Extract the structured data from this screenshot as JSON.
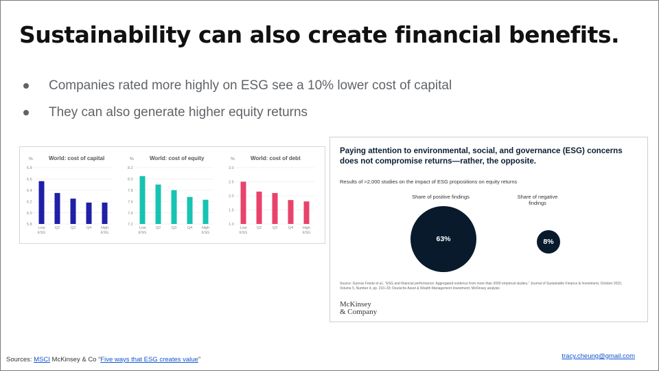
{
  "title": "Sustainability can also create financial benefits.",
  "bullets": [
    "Companies rated more highly on ESG see a 10% lower cost of capital",
    "They can also generate higher equity returns"
  ],
  "colors": {
    "capital": "#1f1fa8",
    "equity": "#17c3b2",
    "debt": "#e8436a",
    "dark_circle": "#081a2c",
    "link": "#1155cc"
  },
  "chart_data": [
    {
      "type": "bar",
      "title": "World: cost of capital",
      "ylabel": "%",
      "categories": [
        "Low ESG",
        "Q2",
        "Q3",
        "Q4",
        "High ESG"
      ],
      "values": [
        6.56,
        6.35,
        6.25,
        6.18,
        6.18
      ],
      "ylim": [
        5.8,
        6.8
      ],
      "yticks": [
        "5.8",
        "6.0",
        "6.2",
        "6.4",
        "6.6",
        "6.8"
      ]
    },
    {
      "type": "bar",
      "title": "World: cost of equity",
      "ylabel": "%",
      "categories": [
        "Low ESG",
        "Q2",
        "Q3",
        "Q4",
        "High ESG"
      ],
      "values": [
        8.05,
        7.9,
        7.8,
        7.68,
        7.63
      ],
      "ylim": [
        7.2,
        8.2
      ],
      "yticks": [
        "7.2",
        "7.4",
        "7.6",
        "7.8",
        "8.0",
        "8.2"
      ]
    },
    {
      "type": "bar",
      "title": "World: cost of debt",
      "ylabel": "%",
      "categories": [
        "Low ESG",
        "Q2",
        "Q3",
        "Q4",
        "High ESG"
      ],
      "values": [
        2.5,
        2.15,
        2.1,
        1.85,
        1.8
      ],
      "ylim": [
        1.0,
        3.0
      ],
      "yticks": [
        "1.0",
        "1.5",
        "2.0",
        "2.5",
        "3.0"
      ]
    }
  ],
  "mckinsey": {
    "headline": "Paying attention to environmental, social, and governance (ESG) concerns does not compromise returns—rather, the opposite.",
    "subtitle": "Results of >2,000 studies on the impact of ESG propositions on equity returns",
    "positive_label": "Share of positive findings",
    "positive_value": "63%",
    "positive_share": 63,
    "negative_label": "Share of negative findings",
    "negative_value": "8%",
    "negative_share": 8,
    "source": "Source: Gunnar Friede et al., “ESG and financial performance: Aggregated evidence from more than 2000 empirical studies,” Journal of Sustainable Finance & Investment, October 2015, Volume 5, Number 4, pp. 210–33; Deutsche Asset & Wealth Management Investment; McKinsey analysis",
    "logo_line1": "McKinsey",
    "logo_line2": "& Company"
  },
  "footer": {
    "sources_prefix": "Sources: ",
    "msci_link": "MSCI",
    "middle_text": " McKinsey & Co “",
    "article_link": "Five ways that ESG creates value",
    "suffix": "”",
    "email": "tracy.cheung@gmail.com"
  }
}
